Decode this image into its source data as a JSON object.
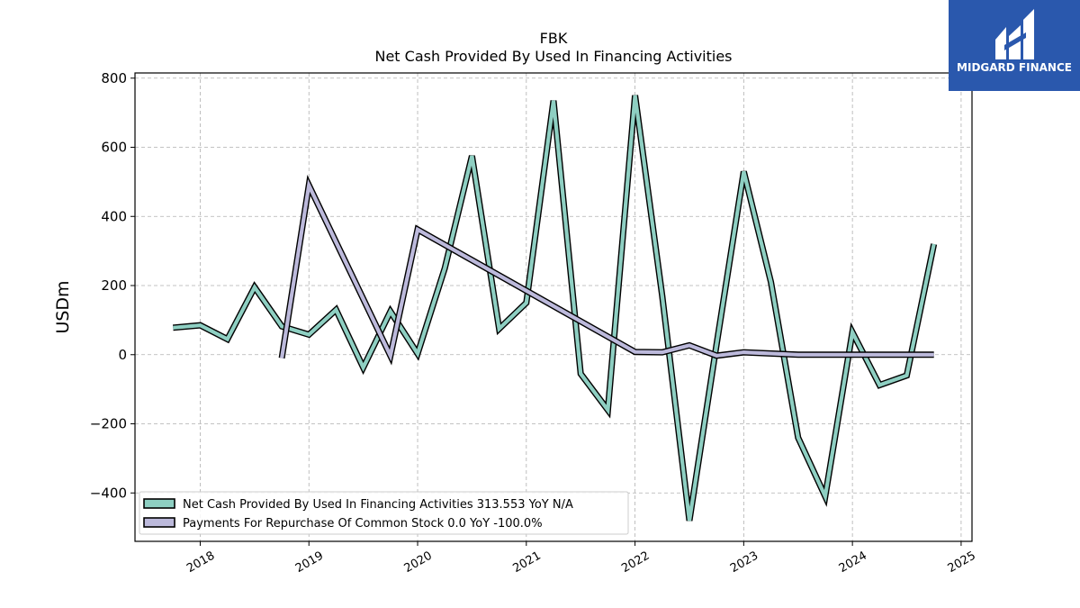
{
  "chart_data": {
    "type": "line",
    "title": "FBK",
    "subtitle": "Net Cash Provided By Used In Financing Activities",
    "xlabel": "",
    "ylabel": "USDm",
    "ylim": [
      -540,
      815
    ],
    "xlim": [
      2017.4,
      2025.1
    ],
    "yticks": [
      -400,
      -200,
      0,
      200,
      400,
      600,
      800
    ],
    "yticklabels": [
      "−400",
      "−200",
      "0",
      "200",
      "400",
      "600",
      "800"
    ],
    "xticks": [
      2018,
      2019,
      2020,
      2021,
      2022,
      2023,
      2024,
      2025
    ],
    "xticklabels": [
      "2018",
      "2019",
      "2020",
      "2021",
      "2022",
      "2023",
      "2024",
      "2025"
    ],
    "grid": true,
    "legend_position": "lower-left",
    "series": [
      {
        "name": "Net Cash Provided By Used In Financing Activities  313.553 YoY N/A",
        "color": "#8ecfc2",
        "points": [
          [
            2017.75,
            78
          ],
          [
            2018.0,
            85
          ],
          [
            2018.25,
            45
          ],
          [
            2018.5,
            195
          ],
          [
            2018.75,
            82
          ],
          [
            2019.0,
            58
          ],
          [
            2019.25,
            130
          ],
          [
            2019.5,
            -37
          ],
          [
            2019.75,
            125
          ],
          [
            2020.0,
            3
          ],
          [
            2020.25,
            250
          ],
          [
            2020.5,
            575
          ],
          [
            2020.75,
            75
          ],
          [
            2021.0,
            150
          ],
          [
            2021.25,
            735
          ],
          [
            2021.5,
            -55
          ],
          [
            2021.75,
            -160
          ],
          [
            2022.0,
            750
          ],
          [
            2022.25,
            170
          ],
          [
            2022.5,
            -480
          ],
          [
            2022.75,
            30
          ],
          [
            2023.0,
            530
          ],
          [
            2023.25,
            210
          ],
          [
            2023.5,
            -240
          ],
          [
            2023.75,
            -410
          ],
          [
            2024.0,
            65
          ],
          [
            2024.25,
            -88
          ],
          [
            2024.5,
            -60
          ],
          [
            2024.75,
            320
          ]
        ]
      },
      {
        "name": "Payments For Repurchase Of Common Stock  0.0 YoY -100.0%",
        "color": "#bcb9db",
        "points": [
          [
            2018.75,
            -10
          ],
          [
            2019.0,
            490
          ],
          [
            2019.75,
            -3
          ],
          [
            2020.0,
            362
          ],
          [
            2022.0,
            8
          ],
          [
            2022.25,
            7
          ],
          [
            2022.5,
            27
          ],
          [
            2022.75,
            -3
          ],
          [
            2023.0,
            7
          ],
          [
            2023.5,
            0
          ],
          [
            2024.0,
            0
          ],
          [
            2024.75,
            0
          ]
        ]
      }
    ]
  },
  "branding": {
    "logo_text": "MIDGARD FINANCE",
    "logo_color": "#2a58ad"
  }
}
